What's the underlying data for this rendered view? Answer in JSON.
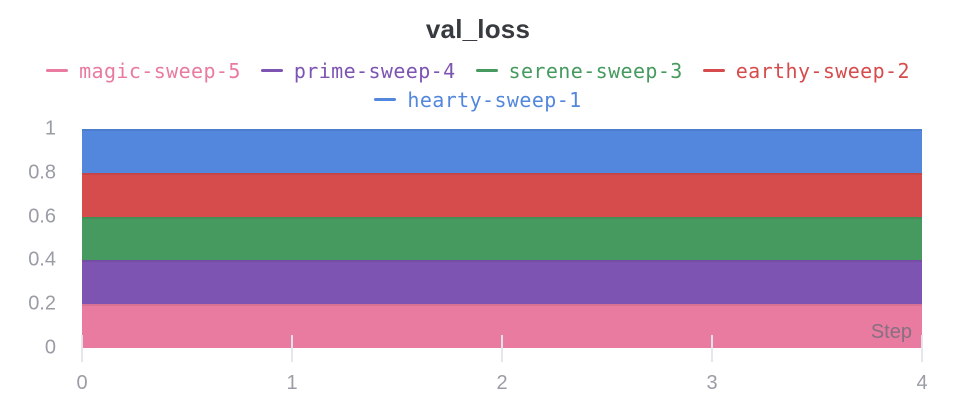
{
  "panel": {
    "title": "val_loss"
  },
  "legend": {
    "rows": [
      [
        "magic-sweep-5",
        "prime-sweep-4",
        "serene-sweep-3",
        "earthy-sweep-2"
      ],
      [
        "hearty-sweep-1"
      ]
    ]
  },
  "axes": {
    "x": {
      "label": "Step",
      "ticks": [
        "0",
        "1",
        "2",
        "3",
        "4"
      ]
    },
    "y": {
      "ticks": [
        "1",
        "0.8",
        "0.6",
        "0.4",
        "0.2",
        "0"
      ]
    }
  },
  "chart_data": {
    "type": "area",
    "title": "val_loss",
    "xlabel": "Step",
    "ylabel": "",
    "x": [
      0,
      1,
      2,
      3,
      4
    ],
    "xlim": [
      0,
      4
    ],
    "ylim": [
      0,
      1
    ],
    "xticks": [
      0,
      1,
      2,
      3,
      4
    ],
    "yticks": [
      0,
      0.2,
      0.4,
      0.6,
      0.8,
      1
    ],
    "grid": false,
    "legend_position": "top",
    "series": [
      {
        "name": "magic-sweep-5",
        "color": "#E87B9F",
        "values": [
          0.2,
          0.2,
          0.2,
          0.2,
          0.2
        ]
      },
      {
        "name": "prime-sweep-4",
        "color": "#7D54B2",
        "values": [
          0.4,
          0.4,
          0.4,
          0.4,
          0.4
        ]
      },
      {
        "name": "serene-sweep-3",
        "color": "#479A5F",
        "values": [
          0.6,
          0.6,
          0.6,
          0.6,
          0.6
        ]
      },
      {
        "name": "earthy-sweep-2",
        "color": "#D64C4D",
        "values": [
          0.8,
          0.8,
          0.8,
          0.8,
          0.8
        ]
      },
      {
        "name": "hearty-sweep-1",
        "color": "#5287DD",
        "values": [
          1.0,
          1.0,
          1.0,
          1.0,
          1.0
        ]
      }
    ]
  }
}
